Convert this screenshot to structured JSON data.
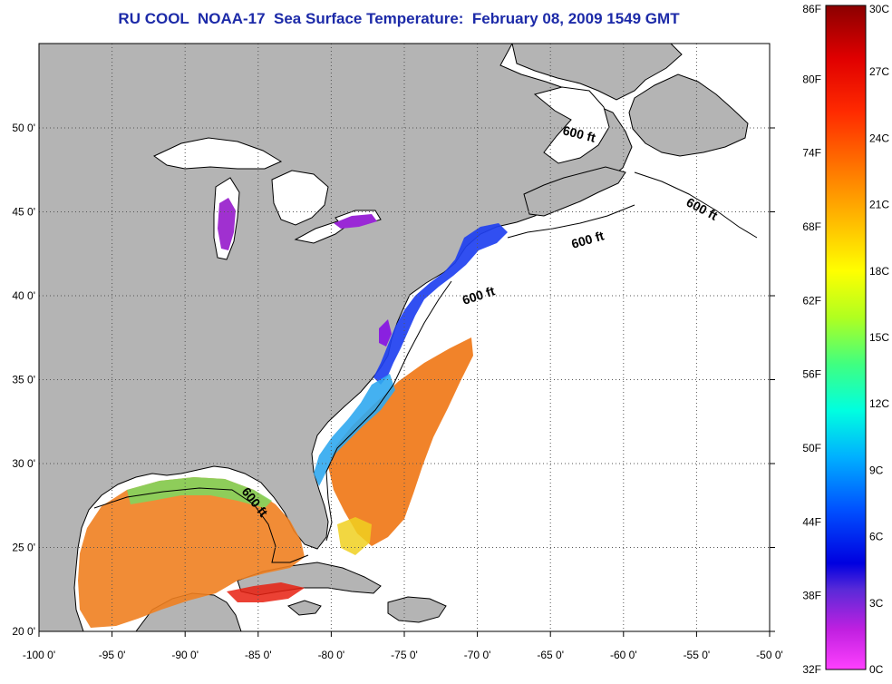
{
  "title": "RU COOL  NOAA-17  Sea Surface Temperature:  February 08, 2009 1549 GMT",
  "map": {
    "lat_labels": [
      "50 0'",
      "45 0'",
      "40 0'",
      "35 0'",
      "30 0'",
      "25 0'",
      "20 0'"
    ],
    "lon_labels": [
      "-100 0'",
      "-95 0'",
      "-90 0'",
      "-85 0'",
      "-80 0'",
      "-75 0'",
      "-70 0'",
      "-65 0'",
      "-60 0'",
      "-55 0'",
      "-50 0'"
    ],
    "contour_labels": [
      "600 ft",
      "600 ft",
      "600 ft",
      "600 ft",
      "600 ft"
    ],
    "colors": {
      "land": "#b4b4b4",
      "ocean": "#ffffff",
      "grid": "#555555"
    }
  },
  "colorbar": {
    "fahrenheit_labels": [
      "86F",
      "80F",
      "74F",
      "68F",
      "62F",
      "56F",
      "50F",
      "44F",
      "38F",
      "32F"
    ],
    "celsius_labels": [
      "30C",
      "27C",
      "24C",
      "21C",
      "18C",
      "15C",
      "12C",
      "9C",
      "6C",
      "3C",
      "0C"
    ]
  }
}
